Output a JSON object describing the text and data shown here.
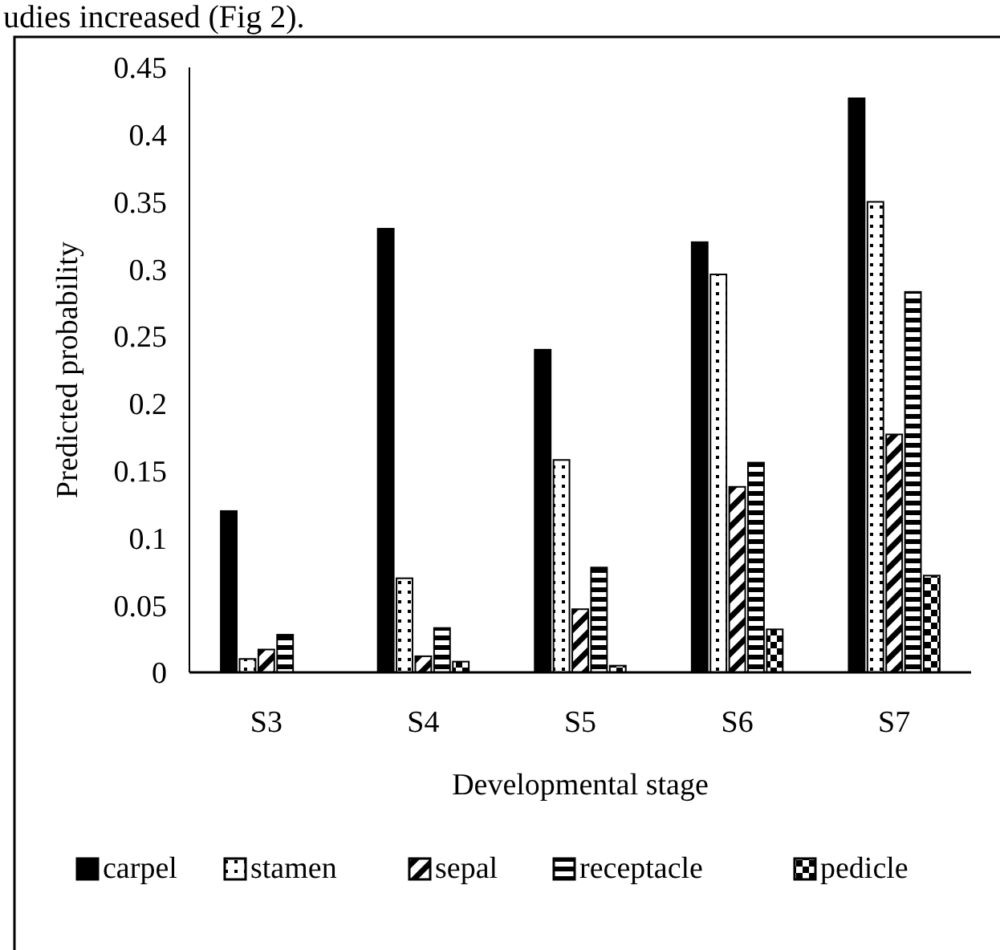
{
  "chart_data": {
    "type": "bar",
    "xlabel": "Developmental stage",
    "ylabel": "Predicted probability",
    "categories": [
      "S3",
      "S4",
      "S5",
      "S6",
      "S7"
    ],
    "series": [
      {
        "name": "carpel",
        "color": "#000000",
        "values": [
          0.12,
          0.33,
          0.24,
          0.32,
          0.427
        ]
      },
      {
        "name": "stamen",
        "color": "#000000",
        "values": [
          0.01,
          0.07,
          0.158,
          0.296,
          0.35
        ]
      },
      {
        "name": "sepal",
        "color": "#000000",
        "values": [
          0.017,
          0.012,
          0.047,
          0.138,
          0.177
        ]
      },
      {
        "name": "receptacle",
        "color": "#000000",
        "values": [
          0.028,
          0.033,
          0.078,
          0.156,
          0.283
        ]
      },
      {
        "name": "pedicle",
        "color": "#000000",
        "values": [
          0,
          0.008,
          0.005,
          0.032,
          0.072
        ]
      }
    ],
    "ylim": [
      0,
      0.45
    ],
    "yticks": [
      0,
      0.05,
      0.1,
      0.15,
      0.2,
      0.25,
      0.3,
      0.35,
      0.4,
      0.45
    ],
    "grid": false,
    "legend": "bottom",
    "annotations": [
      "udies increased (Fig 2)."
    ]
  }
}
